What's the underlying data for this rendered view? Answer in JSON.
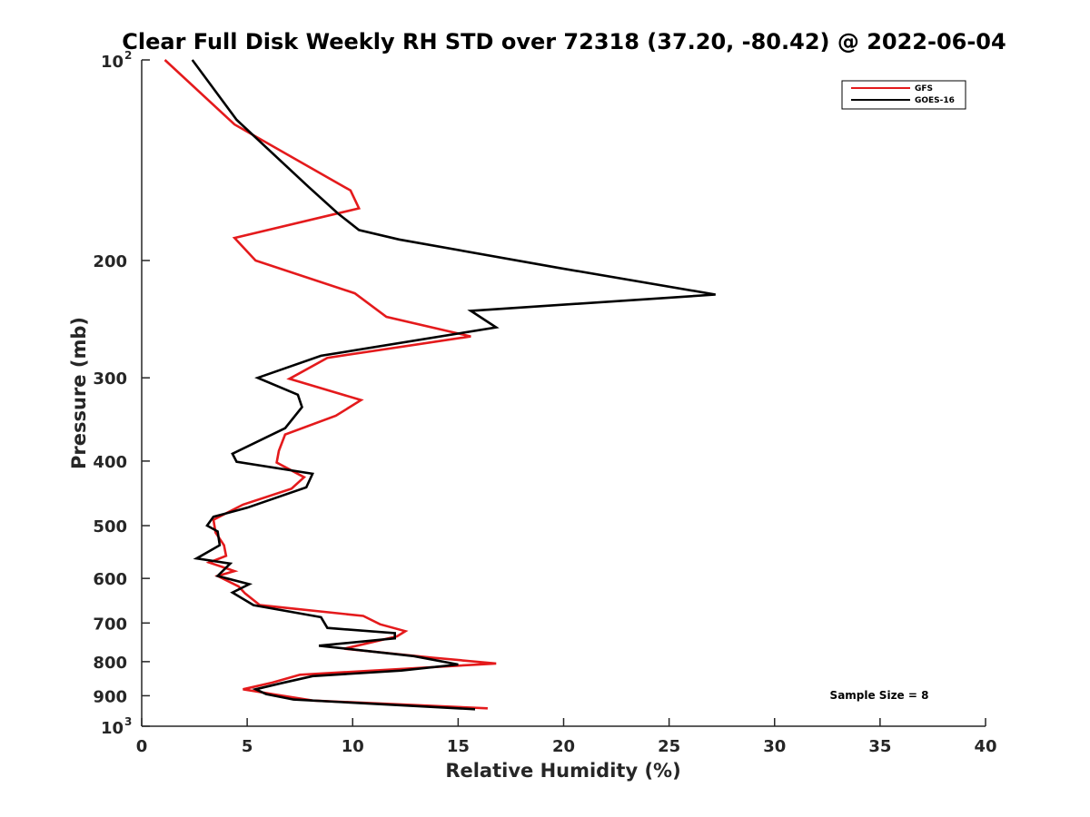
{
  "chart_data": {
    "type": "line",
    "title": "Clear Full Disk Weekly RH STD over 72318 (37.20, -80.42) @ 2022-06-04",
    "xlabel": "Relative Humidity (%)",
    "ylabel": "Pressure (mb)",
    "xlim": [
      0,
      40
    ],
    "ylim": [
      100,
      1000
    ],
    "yscale": "log",
    "y_reversed": true,
    "grid": false,
    "legend_position": "top-right",
    "x_ticks": [
      0,
      5,
      10,
      15,
      20,
      25,
      30,
      35,
      40
    ],
    "y_ticks": [
      {
        "value": 100,
        "label": "10",
        "sup": "2"
      },
      {
        "value": 200,
        "label": "200"
      },
      {
        "value": 300,
        "label": "300"
      },
      {
        "value": 400,
        "label": "400"
      },
      {
        "value": 500,
        "label": "500"
      },
      {
        "value": 600,
        "label": "600"
      },
      {
        "value": 700,
        "label": "700"
      },
      {
        "value": 800,
        "label": "800"
      },
      {
        "value": 900,
        "label": "900"
      },
      {
        "value": 1000,
        "label": "10",
        "sup": "3"
      }
    ],
    "annotation": "Sample Size = 8",
    "series": [
      {
        "name": "GFS",
        "color": "#e41a1c",
        "x": [
          1.1,
          4.4,
          9.9,
          10.3,
          4.4,
          5.4,
          10.1,
          11.6,
          15.6,
          8.8,
          7.0,
          10.4,
          9.2,
          6.8,
          6.5,
          6.4,
          7.7,
          7.1,
          4.8,
          3.4,
          3.5,
          3.9,
          4.0,
          3.2,
          4.4,
          3.6,
          4.6,
          4.9,
          5.6,
          10.5,
          11.3,
          12.5,
          12.1,
          9.6,
          13.8,
          16.8,
          7.5,
          6.2,
          4.8,
          6.2,
          8.1,
          16.4
        ],
        "y": [
          100,
          125,
          157,
          167,
          185,
          200,
          224,
          243,
          260,
          280,
          301,
          324,
          342,
          365,
          386,
          402,
          423,
          440,
          465,
          490,
          512,
          535,
          555,
          568,
          585,
          595,
          617,
          632,
          658,
          683,
          703,
          720,
          733,
          765,
          789,
          805,
          837,
          860,
          880,
          895,
          915,
          940
        ]
      },
      {
        "name": "GOES-16",
        "color": "#000000",
        "x": [
          2.4,
          4.5,
          7.9,
          9.3,
          10.3,
          12.2,
          19.7,
          27.2,
          15.6,
          16.8,
          8.5,
          5.5,
          7.4,
          7.6,
          6.8,
          4.3,
          4.5,
          8.1,
          7.8,
          5.0,
          3.4,
          3.1,
          3.6,
          3.7,
          2.6,
          4.2,
          3.6,
          5.1,
          4.3,
          5.3,
          8.5,
          8.8,
          12.0,
          12.0,
          8.4,
          12.9,
          15.0,
          12.3,
          8.1,
          6.6,
          5.4,
          5.9,
          7.2,
          15.8
        ],
        "y": [
          100,
          123,
          155,
          170,
          180,
          186,
          205,
          225,
          238,
          252,
          278,
          300,
          318,
          332,
          357,
          390,
          401,
          418,
          438,
          470,
          485,
          500,
          510,
          535,
          560,
          570,
          595,
          612,
          630,
          658,
          686,
          712,
          725,
          738,
          757,
          785,
          808,
          825,
          841,
          862,
          880,
          895,
          912,
          943
        ]
      }
    ]
  }
}
